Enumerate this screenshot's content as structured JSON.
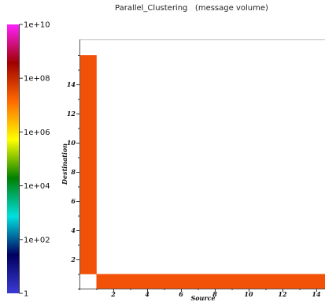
{
  "chart_data": {
    "type": "heatmap",
    "title": "Parallel_Clustering   (message volume)",
    "xlabel": "Source",
    "ylabel": "Destination",
    "xlim": [
      0,
      16
    ],
    "ylim": [
      0,
      16
    ],
    "x_ticks": [
      2,
      4,
      6,
      8,
      10,
      12,
      14
    ],
    "y_ticks": [
      2,
      4,
      6,
      8,
      10,
      12,
      14
    ],
    "colorbar": {
      "scale": "log",
      "range": [
        1,
        10000000000
      ],
      "ticks": [
        {
          "value": 1,
          "label": "1"
        },
        {
          "value": 100,
          "label": "1e+02"
        },
        {
          "value": 10000,
          "label": "1e+04"
        },
        {
          "value": 1000000,
          "label": "1e+06"
        },
        {
          "value": 100000000,
          "label": "1e+08"
        },
        {
          "value": 10000000000,
          "label": "1e+10"
        }
      ],
      "colors": [
        "#3b3bd6",
        "#000060",
        "#00e0e0",
        "#008000",
        "#ffff00",
        "#ff6a00",
        "#a00000",
        "#ff20ff"
      ]
    },
    "cell_color": "#f25207",
    "cells": [
      {
        "source": 0,
        "destination": 1,
        "value": 100000000
      },
      {
        "source": 0,
        "destination": 2,
        "value": 100000000
      },
      {
        "source": 0,
        "destination": 3,
        "value": 100000000
      },
      {
        "source": 0,
        "destination": 4,
        "value": 100000000
      },
      {
        "source": 0,
        "destination": 5,
        "value": 100000000
      },
      {
        "source": 0,
        "destination": 6,
        "value": 100000000
      },
      {
        "source": 0,
        "destination": 7,
        "value": 100000000
      },
      {
        "source": 0,
        "destination": 8,
        "value": 100000000
      },
      {
        "source": 0,
        "destination": 9,
        "value": 100000000
      },
      {
        "source": 0,
        "destination": 10,
        "value": 100000000
      },
      {
        "source": 0,
        "destination": 11,
        "value": 100000000
      },
      {
        "source": 0,
        "destination": 12,
        "value": 100000000
      },
      {
        "source": 0,
        "destination": 13,
        "value": 100000000
      },
      {
        "source": 0,
        "destination": 14,
        "value": 100000000
      },
      {
        "source": 0,
        "destination": 15,
        "value": 100000000
      },
      {
        "source": 1,
        "destination": 0,
        "value": 100000000
      },
      {
        "source": 2,
        "destination": 0,
        "value": 100000000
      },
      {
        "source": 3,
        "destination": 0,
        "value": 100000000
      },
      {
        "source": 4,
        "destination": 0,
        "value": 100000000
      },
      {
        "source": 5,
        "destination": 0,
        "value": 100000000
      },
      {
        "source": 6,
        "destination": 0,
        "value": 100000000
      },
      {
        "source": 7,
        "destination": 0,
        "value": 100000000
      },
      {
        "source": 8,
        "destination": 0,
        "value": 100000000
      },
      {
        "source": 9,
        "destination": 0,
        "value": 100000000
      },
      {
        "source": 10,
        "destination": 0,
        "value": 100000000
      },
      {
        "source": 11,
        "destination": 0,
        "value": 100000000
      },
      {
        "source": 12,
        "destination": 0,
        "value": 100000000
      },
      {
        "source": 13,
        "destination": 0,
        "value": 100000000
      },
      {
        "source": 14,
        "destination": 0,
        "value": 100000000
      },
      {
        "source": 15,
        "destination": 0,
        "value": 100000000
      }
    ]
  }
}
